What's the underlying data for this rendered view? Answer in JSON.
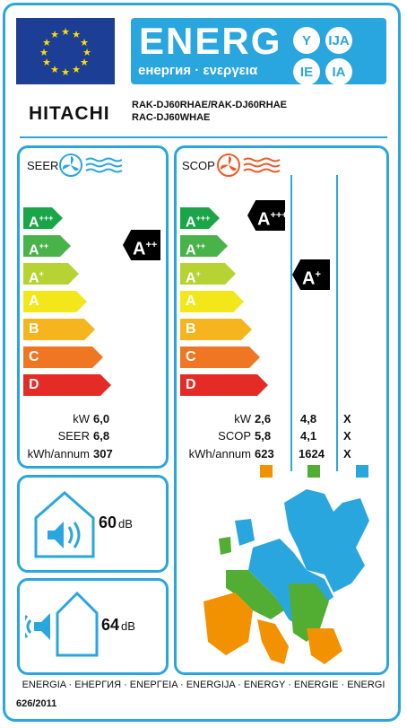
{
  "header": {
    "energ": "ENERG",
    "subline": "енергия · ενεργεια",
    "suffixes": [
      "Y",
      "IJA",
      "IE",
      "IA"
    ],
    "brand": "HITACHI",
    "model_line1": "RAK-DJ60RHAE/RAK-DJ60RHAE",
    "model_line2": "RAC-DJ60WHAE"
  },
  "scale": {
    "classes": [
      {
        "label": "A",
        "sup": "+++",
        "color": "#1aa548"
      },
      {
        "label": "A",
        "sup": "++",
        "color": "#49b34a"
      },
      {
        "label": "A",
        "sup": "+",
        "color": "#b6d333"
      },
      {
        "label": "A",
        "sup": "",
        "color": "#f3e71b"
      },
      {
        "label": "B",
        "sup": "",
        "color": "#f6b51e"
      },
      {
        "label": "C",
        "sup": "",
        "color": "#ef7723"
      },
      {
        "label": "D",
        "sup": "",
        "color": "#e42b26"
      }
    ]
  },
  "cooling": {
    "title": "SEER",
    "rating_label": "A",
    "rating_sup": "++",
    "rows": [
      {
        "label": "kW",
        "value": "6,0"
      },
      {
        "label": "SEER",
        "value": "6,8"
      },
      {
        "label": "kWh/annum",
        "value": "307"
      }
    ]
  },
  "heating": {
    "title": "SCOP",
    "rating_warm_label": "A",
    "rating_warm_sup": "+++",
    "rating_avg_label": "A",
    "rating_avg_sup": "+",
    "rows": [
      {
        "label": "kW",
        "v1": "2,6",
        "v2": "4,8",
        "v3": "X"
      },
      {
        "label": "SCOP",
        "v1": "5,8",
        "v2": "4,1",
        "v3": "X"
      },
      {
        "label": "kWh/annum",
        "v1": "623",
        "v2": "1624",
        "v3": "X"
      }
    ],
    "zone_colors": [
      "#f39200",
      "#52ae32",
      "#2aa6de"
    ]
  },
  "noise": {
    "indoor_value": "60",
    "indoor_unit": "dB",
    "outdoor_value": "64",
    "outdoor_unit": "dB"
  },
  "footer": {
    "languages": "ENERGIA · ЕНЕРГИЯ · ΕΝΕΡΓΕΙΑ · ENERGIJA · ENERGY · ENERGIE · ENERGI",
    "regulation": "626/2011"
  },
  "colors": {
    "accent": "#2aa6de",
    "flag_blue": "#1c3f95",
    "flag_stars": "#ffde00"
  }
}
